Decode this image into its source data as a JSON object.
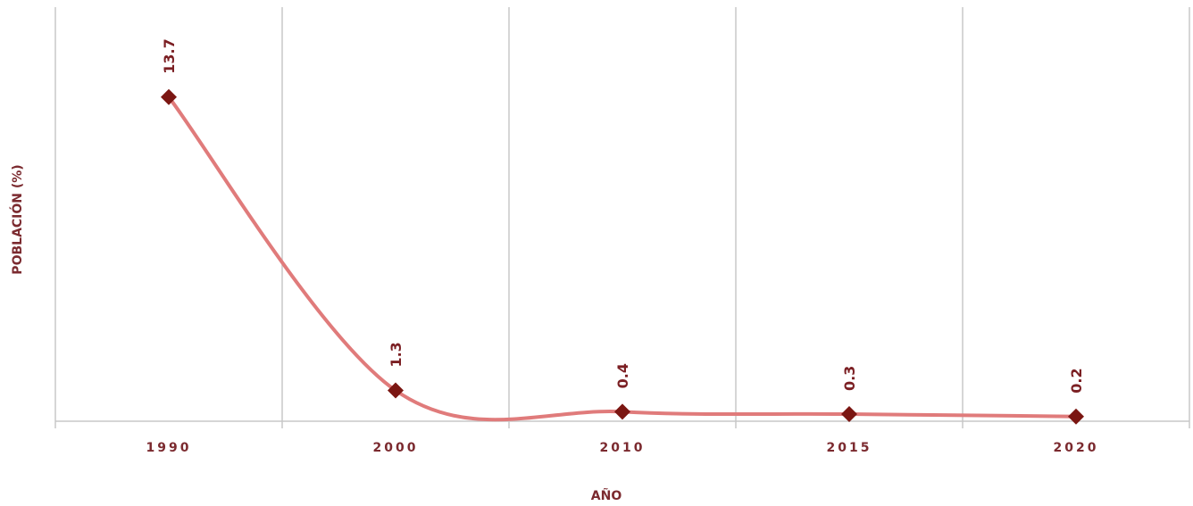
{
  "chart_data": {
    "type": "line",
    "categories": [
      "1990",
      "2000",
      "2010",
      "2015",
      "2020"
    ],
    "series": [
      {
        "values": [
          13.7,
          1.3,
          0.4,
          0.3,
          0.2
        ]
      }
    ],
    "data_labels": [
      "13.7",
      "1.3",
      "0.4",
      "0.3",
      "0.2"
    ],
    "xlabel": "AÑO",
    "ylabel": "POBLACIÓN (%)",
    "ylim": [
      0,
      17.5
    ],
    "smooth": true,
    "grid": "vertical",
    "legend": "none",
    "colors": {
      "line": "#e07b7b",
      "marker": "#7b1612",
      "label": "#7b1f23",
      "grid": "#c8c8c8",
      "axis_text": "#7b2a2f"
    }
  }
}
